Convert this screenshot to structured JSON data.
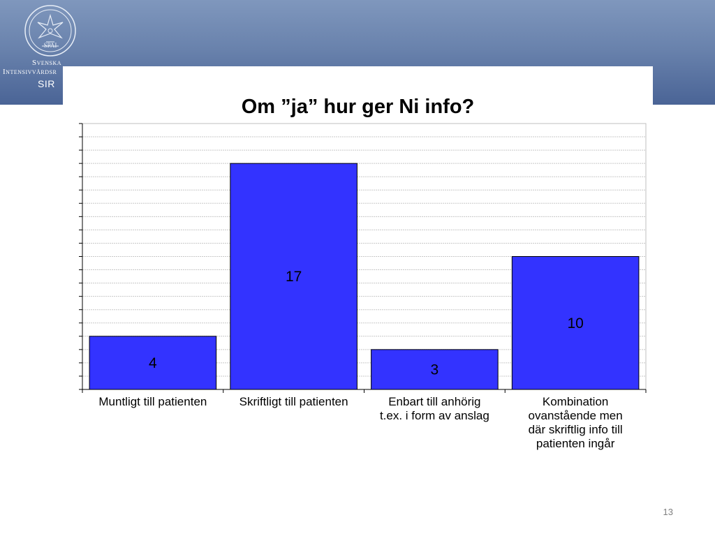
{
  "slide": {
    "page_number": "13"
  },
  "logo": {
    "line1": "Svenska",
    "line2": "Intensivvårdsr",
    "line3": "SIR",
    "seal_text": "SPAI"
  },
  "colors": {
    "header_top": "#7f97bd",
    "header_bottom": "#4a6496",
    "bar_fill": "#3333ff",
    "bar_stroke": "#000000"
  },
  "chart_data": {
    "type": "bar",
    "title": "Om ”ja” hur ger Ni info?",
    "xlabel": "",
    "ylabel": "",
    "categories": [
      "Muntligt till patienten",
      "Skriftligt till patienten",
      "Enbart till anhörig t.ex. i form av anslag",
      "Kombination ovanstående men där skriftlig info till patienten ingår"
    ],
    "category_lines": [
      [
        "Muntligt till patienten"
      ],
      [
        "Skriftligt till patienten"
      ],
      [
        "Enbart till anhörig",
        "t.ex. i form av anslag"
      ],
      [
        "Kombination",
        "ovanstående men",
        "där skriftlig info till",
        "patienten ingår"
      ]
    ],
    "values": [
      4,
      17,
      3,
      10
    ],
    "data_labels": [
      "4",
      "17",
      "3",
      "10"
    ],
    "ylim": [
      0,
      20
    ],
    "y_tick_step": 1,
    "y_tick_labels_shown": false,
    "grid": true,
    "legend": "none"
  }
}
